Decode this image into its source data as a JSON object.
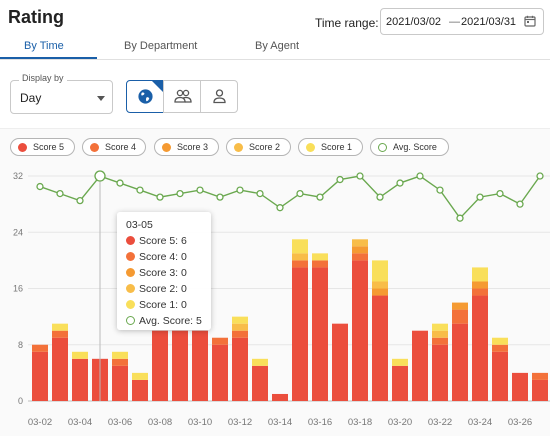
{
  "header": {
    "title": "Rating"
  },
  "time_range": {
    "label": "Time range:",
    "from": "2021/03/02",
    "separator": "—",
    "to": "2021/03/31"
  },
  "tabs": [
    {
      "label": "By Time"
    },
    {
      "label": "By Department"
    },
    {
      "label": "By Agent"
    }
  ],
  "display_by": {
    "label": "Display by",
    "value": "Day"
  },
  "view_modes": [
    {
      "icon": "globe-icon",
      "active": true
    },
    {
      "icon": "group-icon",
      "active": false
    },
    {
      "icon": "person-icon",
      "active": false
    }
  ],
  "colors": {
    "accent": "#1a5fa8",
    "score5": "#eb4e3d",
    "score4": "#f3713a",
    "score3": "#f59a32",
    "score2": "#f8bd49",
    "score1": "#f9df5a",
    "avg": "#6aa84f"
  },
  "tooltip": {
    "title": "03-05",
    "rows": [
      {
        "label": "Score 5: 6"
      },
      {
        "label": "Score 4: 0"
      },
      {
        "label": "Score 3: 0"
      },
      {
        "label": "Score 2: 0"
      },
      {
        "label": "Score 1: 0"
      },
      {
        "label": "Avg. Score: 5"
      }
    ]
  },
  "chart_data": {
    "type": "bar",
    "stacked": true,
    "categories": [
      "03-02",
      "03-03",
      "03-04",
      "03-05",
      "03-06",
      "03-07",
      "03-08",
      "03-09",
      "03-10",
      "03-11",
      "03-12",
      "03-13",
      "03-14",
      "03-15",
      "03-16",
      "03-17",
      "03-18",
      "03-19",
      "03-20",
      "03-21",
      "03-22",
      "03-23",
      "03-24",
      "03-25",
      "03-26",
      "03-27"
    ],
    "x_tick_labels": [
      "03-02",
      "03-04",
      "03-06",
      "03-08",
      "03-10",
      "03-12",
      "03-14",
      "03-16",
      "03-18",
      "03-20",
      "03-22",
      "03-24",
      "03-26"
    ],
    "y_ticks": [
      0,
      8,
      16,
      24,
      32
    ],
    "ylim": [
      0,
      33
    ],
    "legend_position": "top-left",
    "series": [
      {
        "name": "Score 5",
        "values": [
          7,
          9,
          6,
          6,
          5,
          3,
          10,
          10,
          10,
          8,
          9,
          5,
          1,
          19,
          19,
          11,
          20,
          15,
          5,
          10,
          8,
          11,
          15,
          7,
          4,
          3
        ]
      },
      {
        "name": "Score 4",
        "values": [
          1,
          1,
          0,
          0,
          1,
          0,
          0,
          0,
          0,
          1,
          1,
          0,
          0,
          1,
          1,
          0,
          1,
          0,
          0,
          0,
          1,
          2,
          1,
          1,
          0,
          1
        ]
      },
      {
        "name": "Score 3",
        "values": [
          0,
          0,
          0,
          0,
          0,
          0,
          0,
          0,
          0,
          0,
          0,
          0,
          0,
          0,
          0,
          0,
          1,
          1,
          0,
          0,
          0,
          1,
          1,
          0,
          0,
          0
        ]
      },
      {
        "name": "Score 2",
        "values": [
          0,
          0,
          0,
          0,
          0,
          0,
          0,
          0,
          0,
          0,
          1,
          0,
          0,
          1,
          0,
          0,
          1,
          1,
          0,
          0,
          1,
          0,
          0,
          0,
          0,
          0
        ]
      },
      {
        "name": "Score 1",
        "values": [
          0,
          1,
          1,
          0,
          1,
          1,
          0,
          0,
          0,
          0,
          1,
          1,
          0,
          2,
          1,
          0,
          0,
          3,
          1,
          0,
          1,
          0,
          2,
          1,
          0,
          0
        ]
      }
    ],
    "line_series": {
      "name": "Avg. Score",
      "values": [
        30.5,
        29.5,
        28.5,
        32,
        31,
        30,
        29,
        29.5,
        30,
        29,
        30,
        29.5,
        27.5,
        29.5,
        29,
        31.5,
        32,
        29,
        31,
        32,
        30,
        26,
        29,
        29.5,
        28,
        32
      ]
    }
  }
}
